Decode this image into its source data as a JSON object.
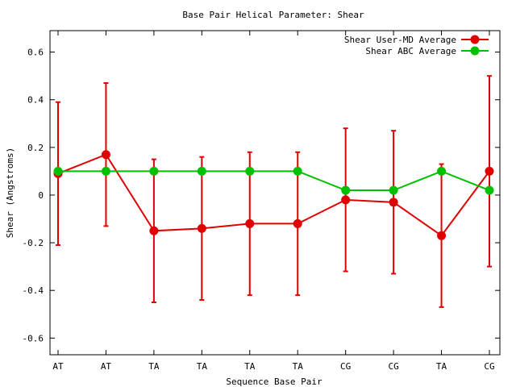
{
  "chart_data": {
    "type": "line",
    "title": "Base Pair Helical Parameter: Shear",
    "xlabel": "Sequence Base Pair",
    "ylabel": "Shear (Angstroms)",
    "categories": [
      "AT",
      "AT",
      "TA",
      "TA",
      "TA",
      "TA",
      "CG",
      "CG",
      "TA",
      "CG"
    ],
    "ylim": [
      -0.67,
      0.69
    ],
    "yticks": [
      -0.6,
      -0.4,
      -0.2,
      0,
      0.2,
      0.4,
      0.6
    ],
    "ytick_labels": [
      "-0.6",
      "-0.4",
      "-0.2",
      "0",
      "0.2",
      "0.4",
      "0.6"
    ],
    "grid": false,
    "legend_position": "top-right",
    "series": [
      {
        "name": "Shear User-MD Average",
        "color": "#e00000",
        "values": [
          0.09,
          0.17,
          -0.15,
          -0.14,
          -0.12,
          -0.12,
          -0.02,
          -0.03,
          -0.17,
          0.1
        ],
        "error_low": [
          -0.21,
          -0.13,
          -0.45,
          -0.44,
          -0.42,
          -0.42,
          -0.32,
          -0.33,
          -0.47,
          -0.3
        ],
        "error_high": [
          0.39,
          0.47,
          0.15,
          0.16,
          0.18,
          0.18,
          0.28,
          0.27,
          0.13,
          0.5
        ]
      },
      {
        "name": "Shear ABC Average",
        "color": "#00c000",
        "values": [
          0.1,
          0.1,
          0.1,
          0.1,
          0.1,
          0.1,
          0.02,
          0.02,
          0.1,
          0.02
        ]
      }
    ]
  }
}
